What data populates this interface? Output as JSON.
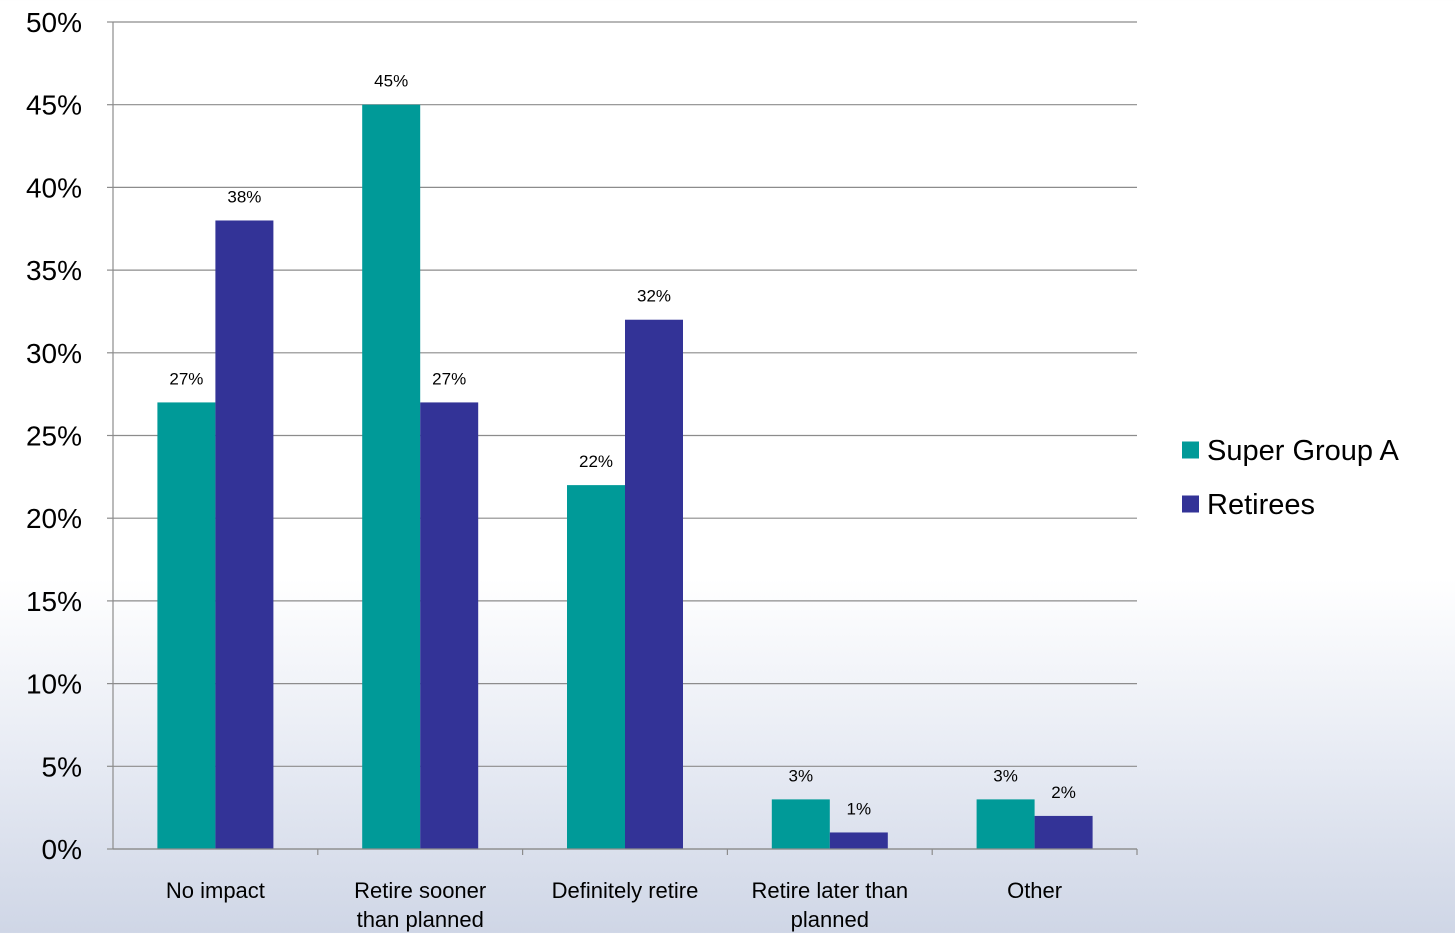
{
  "chart_data": {
    "type": "bar",
    "categories": [
      [
        "No impact"
      ],
      [
        "Retire sooner",
        "than planned"
      ],
      [
        "Definitely retire"
      ],
      [
        "Retire later than",
        "planned"
      ],
      [
        "Other"
      ]
    ],
    "series": [
      {
        "name": "Super Group A",
        "color": "#009a98",
        "values": [
          27,
          45,
          22,
          3,
          3
        ],
        "labels": [
          "27%",
          "45%",
          "22%",
          "3%",
          "3%"
        ]
      },
      {
        "name": "Retirees",
        "color": "#333397",
        "values": [
          38,
          27,
          32,
          1,
          2
        ],
        "labels": [
          "38%",
          "27%",
          "32%",
          "1%",
          "2%"
        ]
      }
    ],
    "ylim": [
      0,
      50
    ],
    "yticks": [
      "0%",
      "5%",
      "10%",
      "15%",
      "20%",
      "25%",
      "30%",
      "35%",
      "40%",
      "45%",
      "50%"
    ],
    "ytick_step": 5,
    "grid": true,
    "legend_position": "right"
  }
}
